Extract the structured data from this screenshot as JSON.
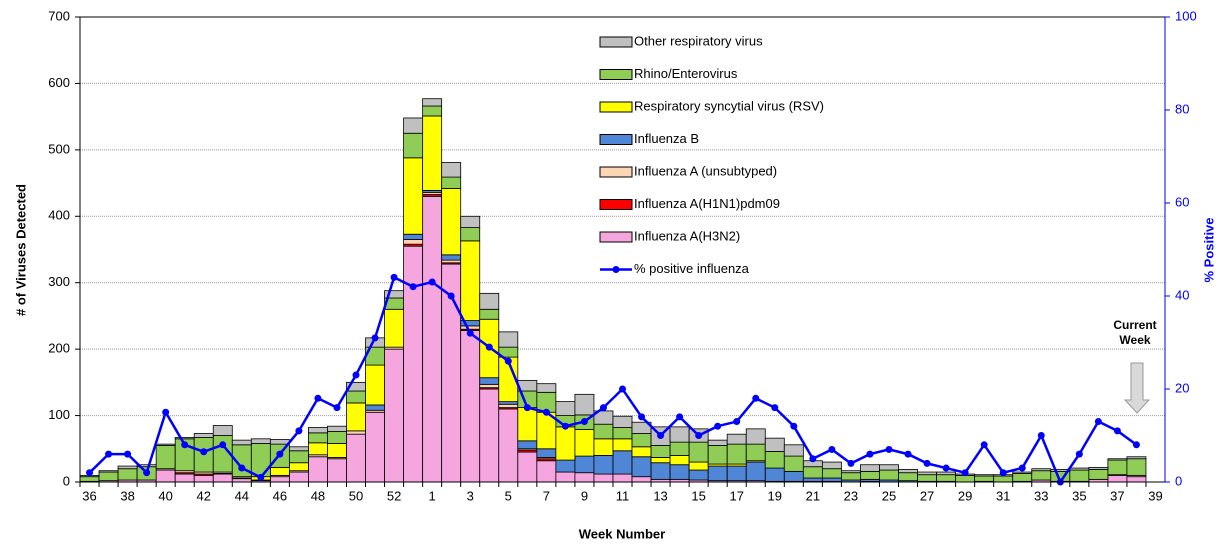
{
  "chart_data": {
    "type": "bar",
    "stacked": true,
    "x_label": "Week  Number",
    "y_label": "# of Viruses Detected",
    "y2_label": "% Positive",
    "annotation": "Current Week",
    "categories": [
      36,
      null,
      38,
      null,
      40,
      null,
      42,
      null,
      44,
      null,
      46,
      null,
      48,
      null,
      50,
      null,
      52,
      null,
      1,
      null,
      3,
      null,
      5,
      null,
      7,
      null,
      9,
      null,
      11,
      null,
      13,
      null,
      15,
      null,
      17,
      null,
      19,
      null,
      21,
      null,
      23,
      null,
      25,
      null,
      27,
      null,
      29,
      null,
      31,
      null,
      33,
      null,
      35,
      null,
      37,
      null,
      39
    ],
    "ylim": [
      0,
      700
    ],
    "yticks": [
      0,
      100,
      200,
      300,
      400,
      500,
      600,
      700
    ],
    "y2lim": [
      0,
      100
    ],
    "y2ticks": [
      0,
      20,
      40,
      60,
      80,
      100
    ],
    "grid": true,
    "legend": "top",
    "series": [
      {
        "name": "Influenza A(H3N2)",
        "color": "#f5a6df",
        "values": [
          1,
          2,
          3,
          3,
          18,
          12,
          10,
          12,
          5,
          2,
          8,
          15,
          38,
          35,
          72,
          105,
          200,
          355,
          430,
          328,
          228,
          140,
          110,
          45,
          32,
          15,
          14,
          12,
          12,
          8,
          4,
          4,
          3,
          2,
          2,
          2,
          1,
          1,
          1,
          1,
          0,
          1,
          0,
          0,
          0,
          0,
          0,
          0,
          0,
          1,
          3,
          1,
          1,
          4,
          10,
          8,
          null
        ]
      },
      {
        "name": "Influenza A(H1N1)pdm09",
        "color": "#ff0000",
        "values": [
          0,
          0,
          0,
          0,
          0,
          2,
          2,
          1,
          1,
          0,
          0,
          0,
          0,
          0,
          0,
          0,
          0,
          3,
          3,
          2,
          2,
          2,
          2,
          3,
          3,
          0,
          0,
          0,
          0,
          0,
          0,
          0,
          0,
          0,
          0,
          0,
          0,
          0,
          0,
          0,
          0,
          0,
          0,
          0,
          0,
          0,
          0,
          0,
          0,
          0,
          0,
          0,
          0,
          0,
          0,
          0,
          null
        ]
      },
      {
        "name": "Influenza A (unsubtyped)",
        "color": "#fcd5b5",
        "values": [
          0,
          0,
          0,
          0,
          2,
          3,
          3,
          2,
          2,
          1,
          2,
          2,
          3,
          2,
          5,
          3,
          3,
          7,
          3,
          4,
          5,
          5,
          5,
          2,
          2,
          0,
          0,
          0,
          0,
          0,
          0,
          0,
          0,
          0,
          0,
          0,
          0,
          0,
          0,
          0,
          0,
          0,
          0,
          0,
          0,
          0,
          0,
          0,
          0,
          0,
          0,
          0,
          0,
          0,
          1,
          2,
          null
        ]
      },
      {
        "name": "Influenza B",
        "color": "#4f86d6",
        "values": [
          0,
          0,
          0,
          0,
          0,
          0,
          0,
          0,
          0,
          0,
          0,
          0,
          0,
          0,
          0,
          8,
          0,
          8,
          3,
          8,
          8,
          10,
          4,
          12,
          13,
          18,
          25,
          28,
          35,
          30,
          25,
          22,
          15,
          22,
          22,
          28,
          20,
          15,
          5,
          5,
          3,
          3,
          3,
          2,
          1,
          1,
          0,
          1,
          0,
          0,
          0,
          0,
          0,
          0,
          0,
          0,
          null
        ]
      },
      {
        "name": "Respiratory syncytial virus (RSV)",
        "color": "#ffff00",
        "values": [
          0,
          0,
          0,
          0,
          0,
          0,
          0,
          0,
          0,
          5,
          12,
          12,
          18,
          21,
          42,
          60,
          57,
          115,
          112,
          100,
          120,
          88,
          67,
          50,
          55,
          50,
          40,
          25,
          18,
          15,
          8,
          14,
          12,
          3,
          3,
          2,
          0,
          0,
          0,
          0,
          0,
          0,
          0,
          0,
          0,
          0,
          0,
          0,
          0,
          0,
          0,
          0,
          0,
          0,
          0,
          0,
          null
        ]
      },
      {
        "name": "Rhino/Enterovirus",
        "color": "#8fcd57",
        "values": [
          7,
          13,
          17,
          20,
          35,
          48,
          52,
          55,
          48,
          50,
          35,
          18,
          15,
          18,
          18,
          27,
          17,
          37,
          15,
          17,
          20,
          15,
          15,
          25,
          30,
          17,
          22,
          22,
          17,
          20,
          18,
          20,
          30,
          28,
          30,
          25,
          25,
          23,
          17,
          14,
          11,
          12,
          15,
          12,
          10,
          10,
          10,
          8,
          9,
          12,
          14,
          15,
          17,
          15,
          22,
          25,
          null
        ]
      },
      {
        "name": "Other respiratory virus",
        "color": "#c0c0c0",
        "values": [
          2,
          2,
          4,
          3,
          2,
          2,
          6,
          15,
          7,
          7,
          7,
          6,
          8,
          8,
          13,
          14,
          11,
          23,
          11,
          22,
          17,
          24,
          23,
          16,
          13,
          21,
          31,
          20,
          17,
          17,
          28,
          23,
          20,
          8,
          15,
          23,
          20,
          17,
          9,
          10,
          3,
          10,
          8,
          5,
          4,
          4,
          2,
          2,
          2,
          2,
          3,
          3,
          3,
          3,
          2,
          3,
          null
        ]
      },
      {
        "name": "% positive influenza",
        "color": "#0000ff",
        "type": "line",
        "axis": "y2",
        "values": [
          2,
          6,
          6,
          2,
          15,
          8,
          6.5,
          8,
          3,
          1,
          6,
          11,
          18,
          16,
          23,
          31,
          44,
          42,
          43,
          40,
          32,
          29,
          26,
          16,
          15,
          12,
          13,
          16,
          20,
          14,
          10,
          14,
          10,
          12,
          13,
          18,
          16,
          12,
          5,
          7,
          4,
          6,
          7,
          6,
          4,
          3,
          2,
          8,
          2,
          3,
          10,
          0,
          6,
          13,
          11,
          8,
          null
        ]
      }
    ]
  }
}
